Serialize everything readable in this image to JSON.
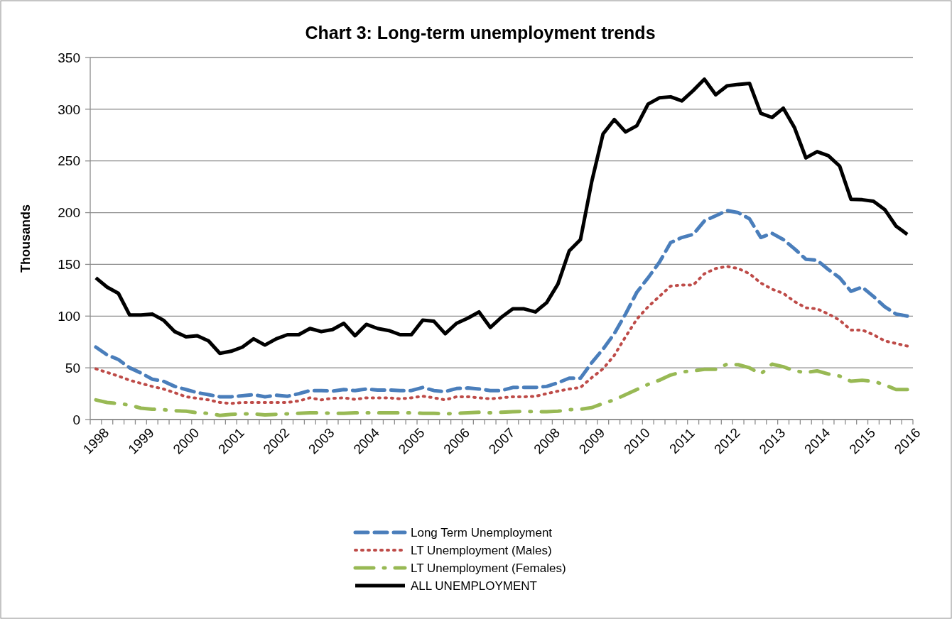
{
  "chart_data": {
    "type": "line",
    "title": "Chart 3: Long-term unemployment trends",
    "ylabel": "Thousands",
    "categories": [
      "1998",
      null,
      null,
      null,
      "1999",
      null,
      null,
      null,
      "2000",
      null,
      null,
      null,
      "2001",
      null,
      null,
      null,
      "2002",
      null,
      null,
      null,
      "2003",
      null,
      null,
      null,
      "2004",
      null,
      null,
      null,
      "2005",
      null,
      null,
      null,
      "2006",
      null,
      null,
      null,
      "2007",
      null,
      null,
      null,
      "2008",
      null,
      null,
      null,
      "2009",
      null,
      null,
      null,
      "2010",
      null,
      null,
      null,
      "2011",
      null,
      null,
      null,
      "2012",
      null,
      null,
      null,
      "2013",
      null,
      null,
      null,
      "2014",
      null,
      null,
      null,
      "2015",
      null,
      null,
      null,
      "2016"
    ],
    "series": [
      {
        "name": "Long Term Unemployment",
        "color": "#4a7ebb",
        "line_style": "dashed",
        "values": [
          70,
          62.5,
          58,
          50,
          45,
          39,
          37,
          32,
          29,
          26,
          24,
          22,
          22,
          23,
          24,
          22,
          23.5,
          22.5,
          25,
          28,
          28,
          27.5,
          29,
          28,
          29.5,
          28.5,
          28.5,
          28,
          28,
          31,
          28,
          27,
          30,
          30.5,
          29.5,
          28,
          28,
          31,
          31,
          31,
          32,
          35.5,
          40,
          40,
          55,
          68,
          83,
          102,
          123,
          137,
          152,
          171,
          176,
          179,
          192,
          197,
          202,
          200,
          194,
          176,
          180,
          174,
          165,
          155,
          154,
          145,
          137,
          124,
          128,
          119,
          109,
          102,
          100
        ]
      },
      {
        "name": "LT Unemployment (Males)",
        "color": "#be4b48",
        "line_style": "dotted",
        "values": [
          49,
          45.5,
          42,
          38,
          35,
          32,
          29.5,
          26,
          22,
          20.5,
          19,
          16.5,
          15.5,
          16.5,
          16.5,
          16.5,
          16.5,
          16.5,
          18,
          21,
          19,
          20.5,
          21,
          19.5,
          21,
          21,
          21,
          20,
          21,
          22.5,
          21,
          19,
          22,
          22,
          21,
          20,
          21,
          22,
          22,
          22.5,
          25,
          27.5,
          29.5,
          31,
          40.5,
          49,
          62,
          80,
          97,
          109,
          119,
          129,
          130,
          130,
          141,
          146,
          148,
          146,
          141,
          132,
          126,
          122,
          114,
          108,
          107,
          102,
          96,
          86.5,
          86.5,
          82,
          76,
          73.5,
          71
        ]
      },
      {
        "name": "LT Unemployment (Females)",
        "color": "#98b954",
        "line_style": "dashdot",
        "values": [
          19,
          16.5,
          15.5,
          14,
          11,
          10,
          9.5,
          8.5,
          8,
          6.5,
          6,
          4,
          5,
          5.5,
          5.5,
          4.5,
          5,
          5.5,
          6,
          6.5,
          6.5,
          6,
          6,
          6.5,
          6.5,
          6.5,
          6.5,
          6.5,
          6.5,
          6,
          6,
          5.5,
          6,
          6.5,
          7,
          6.5,
          7,
          7.5,
          8,
          7.5,
          7.5,
          8,
          9.5,
          10,
          11.5,
          15.5,
          19,
          24,
          29,
          34,
          38,
          43,
          46,
          47,
          48.5,
          48.5,
          53.5,
          53,
          50,
          44,
          53.5,
          51,
          47,
          45.5,
          47,
          44,
          42,
          37,
          38,
          37,
          33.5,
          29,
          29
        ]
      },
      {
        "name": "ALL UNEMPLOYMENT",
        "color": "#000000",
        "line_style": "solid",
        "values": [
          137,
          128,
          122,
          101,
          101,
          102,
          96,
          85,
          80,
          81,
          76,
          64,
          66,
          70,
          78,
          72,
          78,
          82,
          82,
          88,
          85,
          87,
          93,
          81,
          92,
          88,
          86,
          82,
          82,
          96,
          95,
          83,
          93,
          98,
          104,
          89,
          99,
          107,
          107,
          104,
          113,
          131,
          163,
          174,
          230,
          276,
          290,
          278,
          284,
          305,
          311,
          312,
          308,
          318,
          329,
          314,
          322.5,
          324,
          325,
          296,
          292,
          301,
          282,
          253,
          259,
          255,
          245,
          213,
          212.5,
          211,
          203,
          187,
          179
        ]
      }
    ],
    "ylim": [
      0,
      350
    ],
    "yticks": [
      0,
      50,
      100,
      150,
      200,
      250,
      300,
      350
    ],
    "grid": "y",
    "legend": "bottom"
  }
}
